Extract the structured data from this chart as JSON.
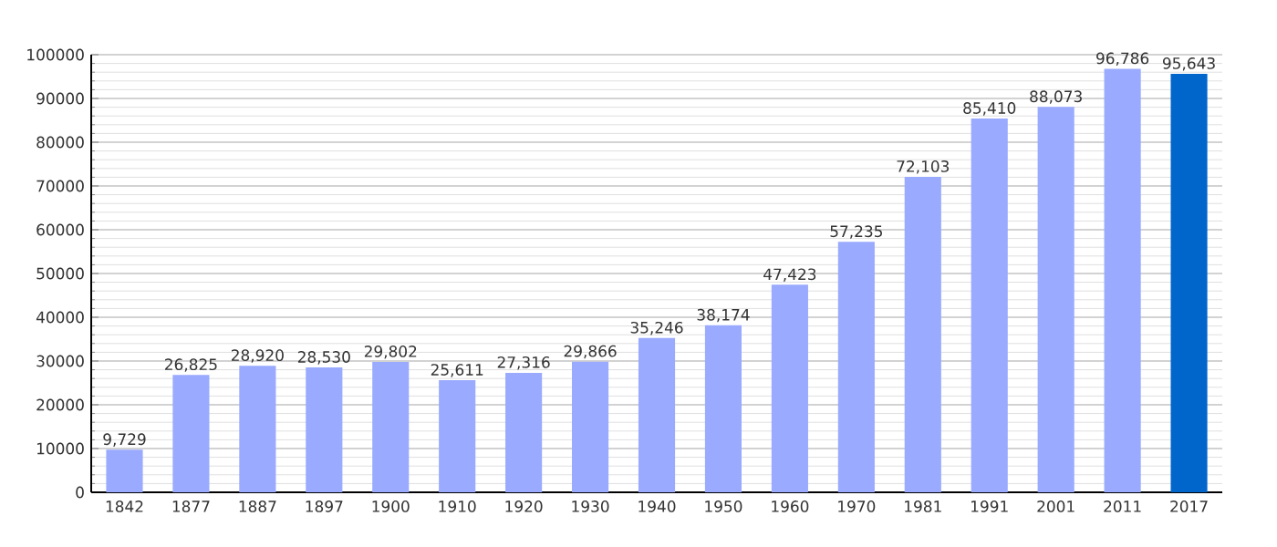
{
  "chart_data": {
    "type": "bar",
    "categories": [
      "1842",
      "1877",
      "1887",
      "1897",
      "1900",
      "1910",
      "1920",
      "1930",
      "1940",
      "1950",
      "1960",
      "1970",
      "1981",
      "1991",
      "2001",
      "2011",
      "2017"
    ],
    "values": [
      9729,
      26825,
      28920,
      28530,
      29802,
      25611,
      27316,
      29866,
      35246,
      38174,
      47423,
      57235,
      72103,
      85410,
      88073,
      96786,
      95643
    ],
    "colors": [
      "#99aaff",
      "#99aaff",
      "#99aaff",
      "#99aaff",
      "#99aaff",
      "#99aaff",
      "#99aaff",
      "#99aaff",
      "#99aaff",
      "#99aaff",
      "#99aaff",
      "#99aaff",
      "#99aaff",
      "#99aaff",
      "#99aaff",
      "#99aaff",
      "#0066cc"
    ],
    "value_labels": [
      "9,729",
      "26,825",
      "28,920",
      "28,530",
      "29,802",
      "25,611",
      "27,316",
      "29,866",
      "35,246",
      "38,174",
      "47,423",
      "57,235",
      "72,103",
      "85,410",
      "88,073",
      "96,786",
      "95,643"
    ],
    "ylim": [
      0,
      100000
    ],
    "yticks": [
      0,
      10000,
      20000,
      30000,
      40000,
      50000,
      60000,
      70000,
      80000,
      90000,
      100000
    ],
    "grid": "y"
  }
}
